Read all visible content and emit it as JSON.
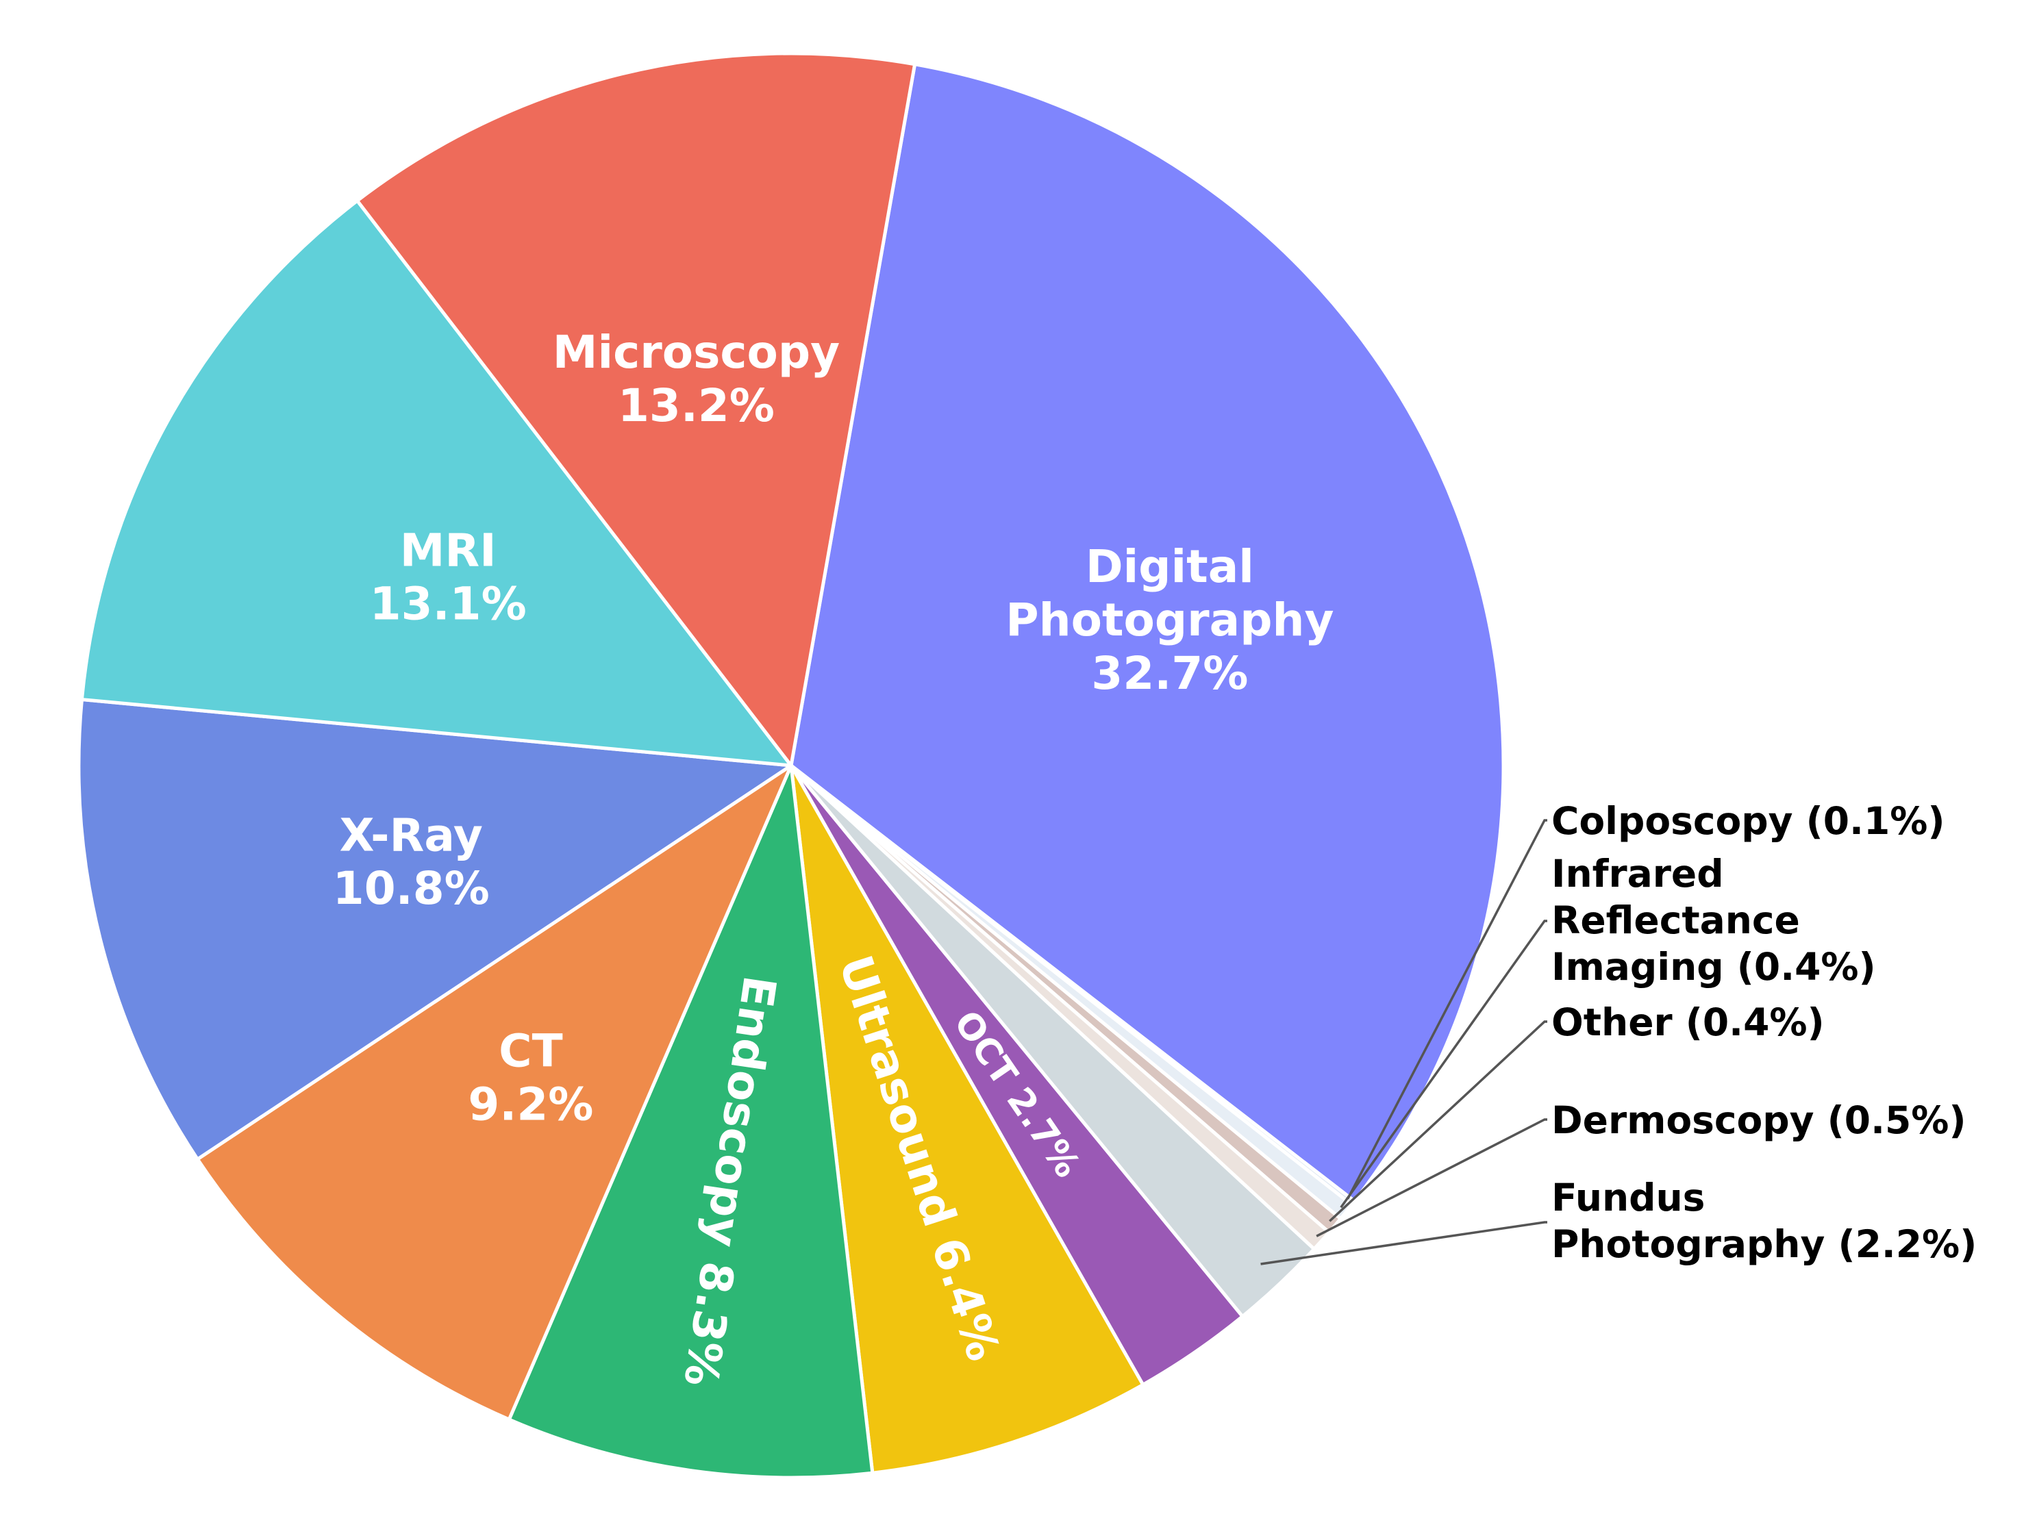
{
  "chart_data": {
    "type": "pie",
    "slices": [
      {
        "label": "Digital Photography",
        "label_lines": [
          "Digital",
          "Photography",
          "32.7%"
        ],
        "value": 32.7,
        "color": "#7f85fd",
        "label_mode": "inside"
      },
      {
        "label": "Colposcopy",
        "label_lines": [
          "Colposcopy (0.1%)"
        ],
        "value": 0.1,
        "color": "#dfe8f3",
        "label_mode": "outside"
      },
      {
        "label": "Infrared Reflectance Imaging",
        "label_lines": [
          "Infrared",
          "Reflectance",
          "Imaging (0.4%)"
        ],
        "value": 0.4,
        "color": "#e7eef5",
        "label_mode": "outside"
      },
      {
        "label": "Other",
        "label_lines": [
          "Other (0.4%)"
        ],
        "value": 0.4,
        "color": "#d9c5bf",
        "label_mode": "outside"
      },
      {
        "label": "Dermoscopy",
        "label_lines": [
          "Dermoscopy (0.5%)"
        ],
        "value": 0.5,
        "color": "#ece3de",
        "label_mode": "outside"
      },
      {
        "label": "Fundus Photography",
        "label_lines": [
          "Fundus",
          "Photography (2.2%)"
        ],
        "value": 2.2,
        "color": "#d1dade",
        "label_mode": "outside"
      },
      {
        "label": "OCT",
        "label_lines": [
          "OCT 2.7%"
        ],
        "value": 2.7,
        "color": "#9a59b5",
        "label_mode": "radial"
      },
      {
        "label": "Ultrasound",
        "label_lines": [
          "Ultrasound 6.4%"
        ],
        "value": 6.4,
        "color": "#f1c40f",
        "label_mode": "radial"
      },
      {
        "label": "Endoscopy",
        "label_lines": [
          "Endoscopy 8.3%"
        ],
        "value": 8.3,
        "color": "#2db775",
        "label_mode": "radial"
      },
      {
        "label": "CT",
        "label_lines": [
          "CT",
          "9.2%"
        ],
        "value": 9.2,
        "color": "#ef8b4b",
        "label_mode": "inside"
      },
      {
        "label": "X-Ray",
        "label_lines": [
          "X-Ray",
          "10.8%"
        ],
        "value": 10.8,
        "color": "#6d8ae3",
        "label_mode": "inside"
      },
      {
        "label": "MRI",
        "label_lines": [
          "MRI",
          "13.1%"
        ],
        "value": 13.1,
        "color": "#60d0d9",
        "label_mode": "inside"
      },
      {
        "label": "Microscopy",
        "label_lines": [
          "Microscopy",
          "13.2%"
        ],
        "value": 13.2,
        "color": "#ee6b5a",
        "label_mode": "inside"
      }
    ],
    "start_angle_deg": 80,
    "direction": "clockwise",
    "legend": "none"
  }
}
